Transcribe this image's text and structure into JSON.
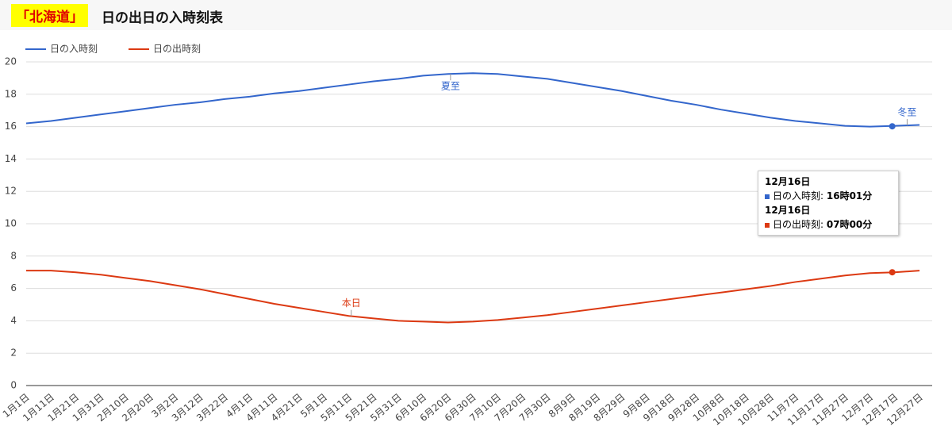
{
  "header": {
    "region": "「北海道」",
    "title": "日の出日の入時刻表"
  },
  "chart_data": {
    "type": "line",
    "categories": [
      "1月1日",
      "1月11日",
      "1月21日",
      "1月31日",
      "2月10日",
      "2月20日",
      "3月2日",
      "3月12日",
      "3月22日",
      "4月1日",
      "4月11日",
      "4月21日",
      "5月1日",
      "5月11日",
      "5月21日",
      "5月31日",
      "6月10日",
      "6月20日",
      "6月30日",
      "7月10日",
      "7月20日",
      "7月30日",
      "8月9日",
      "8月19日",
      "8月29日",
      "9月8日",
      "9月18日",
      "9月28日",
      "10月8日",
      "10月18日",
      "10月28日",
      "11月7日",
      "11月17日",
      "11月27日",
      "12月7日",
      "12月17日",
      "12月27日"
    ],
    "series": [
      {
        "name": "日の入時刻",
        "color": "#3366cc",
        "values": [
          16.2,
          16.35,
          16.55,
          16.75,
          16.95,
          17.15,
          17.35,
          17.5,
          17.7,
          17.85,
          18.05,
          18.2,
          18.4,
          18.6,
          18.8,
          18.95,
          19.15,
          19.25,
          19.3,
          19.25,
          19.1,
          18.95,
          18.7,
          18.45,
          18.2,
          17.9,
          17.6,
          17.35,
          17.05,
          16.8,
          16.55,
          16.35,
          16.2,
          16.05,
          16.0,
          16.05,
          16.1
        ]
      },
      {
        "name": "日の出時刻",
        "color": "#dc3912",
        "values": [
          7.1,
          7.1,
          7.0,
          6.85,
          6.65,
          6.45,
          6.2,
          5.95,
          5.65,
          5.35,
          5.05,
          4.8,
          4.55,
          4.3,
          4.15,
          4.0,
          3.95,
          3.9,
          3.95,
          4.05,
          4.2,
          4.35,
          4.55,
          4.75,
          4.95,
          5.15,
          5.35,
          5.55,
          5.75,
          5.95,
          6.15,
          6.4,
          6.6,
          6.8,
          6.95,
          7.0,
          7.1
        ]
      }
    ],
    "annotations": [
      {
        "text": "夏至"
      },
      {
        "text": "冬至"
      },
      {
        "text": "本日"
      }
    ],
    "tooltip": {
      "items": [
        {
          "date": "12月16日",
          "label": "日の入時刻:",
          "value": 16.02,
          "value_label": "16時01分"
        },
        {
          "date": "12月16日",
          "label": "日の出時刻:",
          "value": 7.0,
          "value_label": "07時00分"
        }
      ]
    },
    "ylim": [
      0,
      20
    ],
    "yticks": [
      0,
      2,
      4,
      6,
      8,
      10,
      12,
      14,
      16,
      18,
      20
    ],
    "grid": true,
    "legend": "top"
  }
}
